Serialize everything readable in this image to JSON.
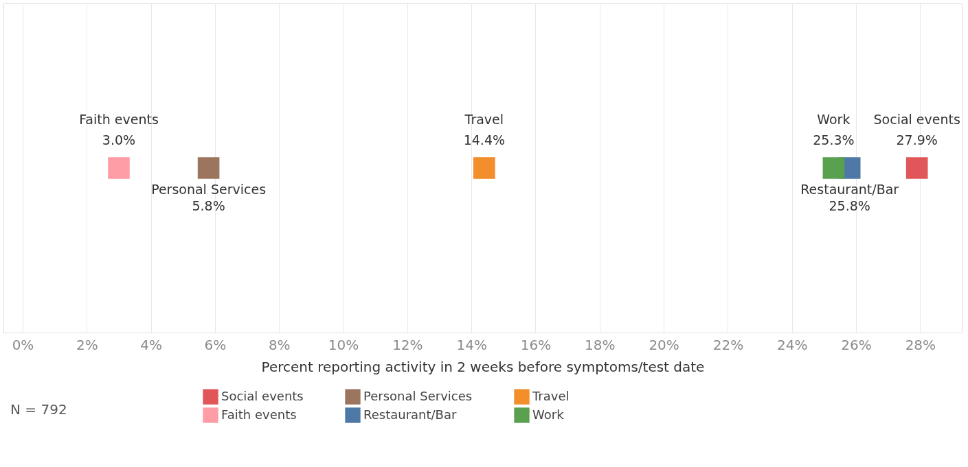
{
  "chart_data": {
    "type": "scatter",
    "orientation": "horizontal",
    "categories": [
      null
    ],
    "xlabel": "Percent reporting activity in 2 weeks before symptoms/test date",
    "xlim": [
      -0.6,
      29.3
    ],
    "xticks": [
      {
        "value": 0,
        "label": "0%"
      },
      {
        "value": 2,
        "label": "2%"
      },
      {
        "value": 4,
        "label": "4%"
      },
      {
        "value": 6,
        "label": "6%"
      },
      {
        "value": 8,
        "label": "8%"
      },
      {
        "value": 10,
        "label": "10%"
      },
      {
        "value": 12,
        "label": "12%"
      },
      {
        "value": 14,
        "label": "14%"
      },
      {
        "value": 16,
        "label": "16%"
      },
      {
        "value": 18,
        "label": "18%"
      },
      {
        "value": 20,
        "label": "20%"
      },
      {
        "value": 22,
        "label": "22%"
      },
      {
        "value": 24,
        "label": "24%"
      },
      {
        "value": 26,
        "label": "26%"
      },
      {
        "value": 28,
        "label": "28%"
      }
    ],
    "grid": "x",
    "marker": "square",
    "legend": "bottom",
    "tick_labels": "x",
    "series": [
      {
        "name": "Social events",
        "color": "#e15759",
        "values": [
          27.9
        ],
        "value_labels": [
          "27.9%"
        ]
      },
      {
        "name": "Personal Services",
        "color": "#9c755f",
        "values": [
          5.8
        ],
        "value_labels": [
          "5.8%"
        ]
      },
      {
        "name": "Travel",
        "color": "#f28e2b",
        "values": [
          14.4
        ],
        "value_labels": [
          "14.4%"
        ]
      },
      {
        "name": "Faith events",
        "color": "#ff9da7",
        "values": [
          3.0
        ],
        "value_labels": [
          "3.0%"
        ]
      },
      {
        "name": "Restaurant/Bar",
        "color": "#4e79a7",
        "values": [
          25.8
        ],
        "value_labels": [
          "25.8%"
        ]
      },
      {
        "name": "Work",
        "color": "#59a14f",
        "values": [
          25.3
        ],
        "value_labels": [
          "25.3%"
        ]
      }
    ],
    "annotations": [
      "N =  792"
    ]
  }
}
